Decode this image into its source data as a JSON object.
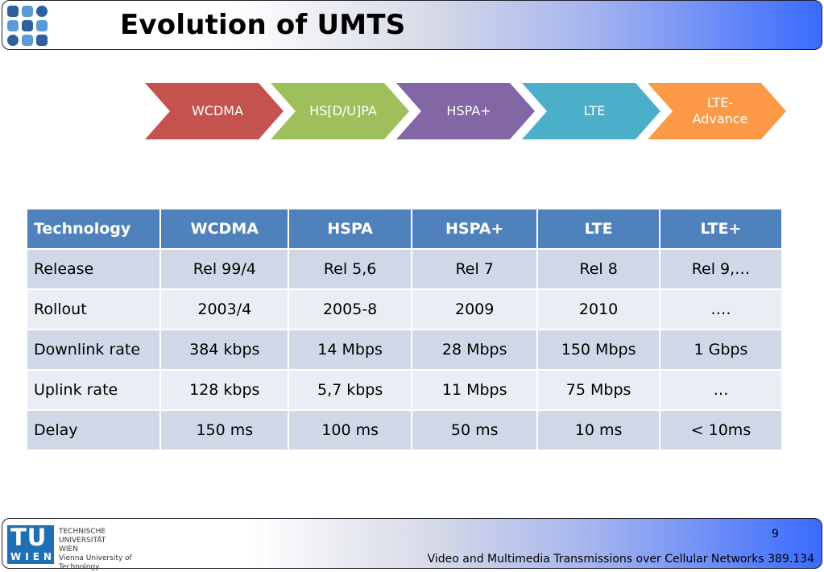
{
  "header": {
    "title": "Evolution of UMTS"
  },
  "flow": {
    "steps": [
      {
        "label": "WCDMA",
        "color": "#c0504d"
      },
      {
        "label": "HS[D/U]PA",
        "color": "#9bbb59"
      },
      {
        "label": "HSPA+",
        "color": "#8064a2"
      },
      {
        "label": "LTE",
        "color": "#4bacc6"
      },
      {
        "label": "LTE-\nAdvance",
        "color": "#f79646"
      }
    ]
  },
  "table": {
    "headers": [
      "Technology",
      "WCDMA",
      "HSPA",
      "HSPA+",
      "LTE",
      "LTE+"
    ],
    "rows": [
      [
        "Release",
        "Rel 99/4",
        "Rel 5,6",
        "Rel 7",
        "Rel 8",
        "Rel 9,…"
      ],
      [
        "Rollout",
        "2003/4",
        "2005-8",
        "2009",
        "2010",
        "…."
      ],
      [
        "Downlink rate",
        "384 kbps",
        "14 Mbps",
        "28 Mbps",
        "150 Mbps",
        "1 Gbps"
      ],
      [
        "Uplink rate",
        "128 kbps",
        "5,7 kbps",
        "11 Mbps",
        "75 Mbps",
        "…"
      ],
      [
        "Delay",
        "150 ms",
        "100 ms",
        "50 ms",
        "10 ms",
        "< 10ms"
      ]
    ]
  },
  "footer": {
    "page_number": "9",
    "course": "Video and Multimedia Transmissions over Cellular Networks 389.134",
    "logo": {
      "mark_top": "TU",
      "mark_bottom": "WIEN",
      "line1": "TECHNISCHE",
      "line2": "UNIVERSITÄT",
      "line3": "WIEN",
      "line4": "Vienna University of Technology"
    }
  }
}
